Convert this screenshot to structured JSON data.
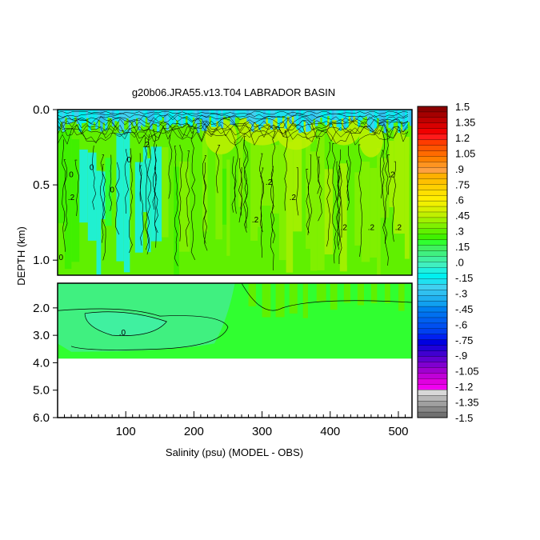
{
  "chart_data": {
    "type": "heatmap",
    "title": "g20b06.JRA55.v13.T04 LABRADOR BASIN",
    "xlabel": "Salinity (psu) (MODEL - OBS)",
    "ylabel": "DEPTH (km)",
    "xlim": [
      0,
      520
    ],
    "x_ticks": [
      "100",
      "200",
      "300",
      "400",
      "500"
    ],
    "y_panels": [
      {
        "name": "upper",
        "ylim": [
          0.0,
          1.1
        ],
        "ticks": [
          "0.0",
          "0.5",
          "1.0"
        ],
        "tick_values": [
          0.0,
          0.5,
          1.0
        ]
      },
      {
        "name": "lower",
        "ylim": [
          1.1,
          6.0
        ],
        "ticks": [
          "2.0",
          "3.0",
          "4.0",
          "5.0",
          "6.0"
        ],
        "tick_values": [
          2.0,
          3.0,
          4.0,
          5.0,
          6.0
        ]
      }
    ],
    "data_bottom_depth": 3.85,
    "contour_labels": [
      {
        "text": "0",
        "x": 20,
        "depth": 0.45
      },
      {
        "text": "0",
        "x": 50,
        "depth": 0.4
      },
      {
        "text": "0",
        "x": 80,
        "depth": 0.55
      },
      {
        "text": "0",
        "x": 105,
        "depth": 0.35
      },
      {
        "text": "0",
        "x": 5,
        "depth": 1.0
      },
      {
        "text": ".2",
        "x": 310,
        "depth": 0.5
      },
      {
        "text": ".2",
        "x": 345,
        "depth": 0.6
      },
      {
        "text": ".2",
        "x": 290,
        "depth": 0.75
      },
      {
        "text": ".2",
        "x": 420,
        "depth": 0.8
      },
      {
        "text": ".2",
        "x": 460,
        "depth": 0.8
      },
      {
        "text": ".2",
        "x": 500,
        "depth": 0.8
      },
      {
        "text": ".2",
        "x": 490,
        "depth": 0.45
      },
      {
        "text": ".2",
        "x": 130,
        "depth": 0.25
      },
      {
        "text": ".2",
        "x": 20,
        "depth": 0.6
      },
      {
        "text": ".0",
        "x": 95,
        "depth": 3.0
      }
    ],
    "colorbar": {
      "labels": [
        "1.5",
        "1.35",
        "1.2",
        "1.05",
        ".9",
        ".75",
        ".6",
        ".45",
        ".3",
        ".15",
        ".0",
        "-.15",
        "-.3",
        "-.45",
        "-.6",
        "-.75",
        "-.9",
        "-1.05",
        "-1.2",
        "-1.35",
        "-1.5"
      ],
      "colors": [
        "#8b0000",
        "#a40000",
        "#be0000",
        "#d80000",
        "#f00000",
        "#ff1a1a",
        "#ff3c00",
        "#ff5500",
        "#ff6a00",
        "#ff8000",
        "#ff9420",
        "#ffa040",
        "#ffb000",
        "#ffc000",
        "#ffd000",
        "#ffe000",
        "#ffee00",
        "#f0f000",
        "#d8f000",
        "#c0f000",
        "#a0f000",
        "#80f000",
        "#60f000",
        "#40f000",
        "#30ff30",
        "#40f060",
        "#40f080",
        "#40f0a0",
        "#40f0c0",
        "#20f0e0",
        "#00f0f0",
        "#20e0f0",
        "#40d0f0",
        "#30c0f0",
        "#20b0f0",
        "#10a0f0",
        "#0080f0",
        "#0070f0",
        "#0060f0",
        "#0050f0",
        "#0040f0",
        "#0020f0",
        "#0000e0",
        "#2000d8",
        "#4000d0",
        "#6000d0",
        "#8000d0",
        "#a000d0",
        "#c000d8",
        "#e000e0",
        "#f000f0",
        "#d8d8d8",
        "#b8b8b8",
        "#a0a0a0",
        "#888888",
        "#707070"
      ]
    },
    "field_colors": {
      "upper_base": "#60f000",
      "upper_patches": [
        "#80f000",
        "#a0f000",
        "#c0f000",
        "#40f000",
        "#30ff30"
      ],
      "upper_cyan": "#20f0d0",
      "upper_surface": [
        "#00f0f0",
        "#20e0f0",
        "#40d0f0",
        "#30c0f0"
      ],
      "lower_base": "#30ff30",
      "lower_light": "#40f080",
      "lower_lightest": "#40f0a0"
    }
  }
}
